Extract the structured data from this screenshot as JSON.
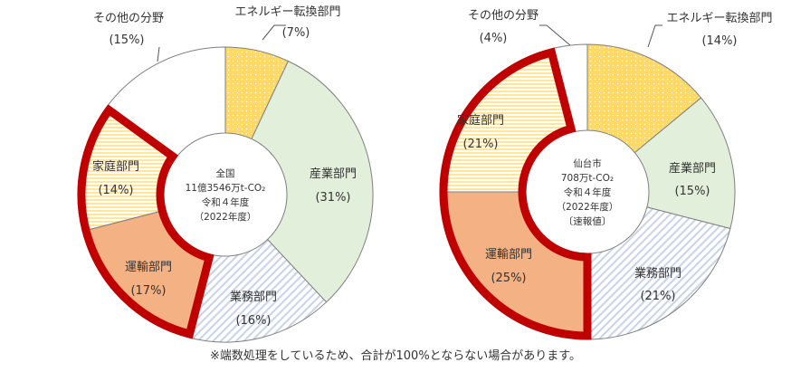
{
  "chart_data": [
    {
      "type": "pie",
      "center_label": [
        "全国",
        "11億3546万t-CO₂",
        "令和４年度",
        "（2022年度）"
      ],
      "slices": [
        {
          "name": "エネルギー転換部門",
          "value": 7,
          "value_label": "(7%)",
          "color": "#FFD966",
          "pattern": "dots"
        },
        {
          "name": "産業部門",
          "value": 31,
          "value_label": "(31%)",
          "color": "#E2EFDA",
          "pattern": "none"
        },
        {
          "name": "業務部門",
          "value": 16,
          "value_label": "(16%)",
          "color": "#DDE3EF",
          "pattern": "diagonal"
        },
        {
          "name": "運輸部門",
          "value": 17,
          "value_label": "(17%)",
          "color": "#F4B183",
          "pattern": "none"
        },
        {
          "name": "家庭部門",
          "value": 14,
          "value_label": "(14%)",
          "color": "#FFF2CC",
          "pattern": "horizontal"
        },
        {
          "name": "その他の分野",
          "value": 15,
          "value_label": "(15%)",
          "color": "#FFFFFF",
          "pattern": "none"
        }
      ],
      "highlighted": [
        "運輸部門",
        "家庭部門"
      ]
    },
    {
      "type": "pie",
      "center_label": [
        "仙台市",
        "708万t-CO₂",
        "令和４年度",
        "（2022年度）",
        "〔速報値〕"
      ],
      "slices": [
        {
          "name": "エネルギー転換部門",
          "value": 14,
          "value_label": "(14%)",
          "color": "#FFD966",
          "pattern": "dots"
        },
        {
          "name": "産業部門",
          "value": 15,
          "value_label": "(15%)",
          "color": "#E2EFDA",
          "pattern": "none"
        },
        {
          "name": "業務部門",
          "value": 21,
          "value_label": "(21%)",
          "color": "#DDE3EF",
          "pattern": "diagonal"
        },
        {
          "name": "運輸部門",
          "value": 25,
          "value_label": "(25%)",
          "color": "#F4B183",
          "pattern": "none"
        },
        {
          "name": "家庭部門",
          "value": 21,
          "value_label": "(21%)",
          "color": "#FFF2CC",
          "pattern": "horizontal"
        },
        {
          "name": "その他の分野",
          "value": 4,
          "value_label": "(4%)",
          "color": "#FFFFFF",
          "pattern": "none"
        }
      ],
      "highlighted": [
        "運輸部門",
        "家庭部門"
      ]
    }
  ],
  "footnote": "※端数処理をしているため、合計が100%とならない場合があります。",
  "colors": {
    "highlight_border": "#C00000",
    "slice_border": "#7F7F7F",
    "text": "#333333"
  }
}
